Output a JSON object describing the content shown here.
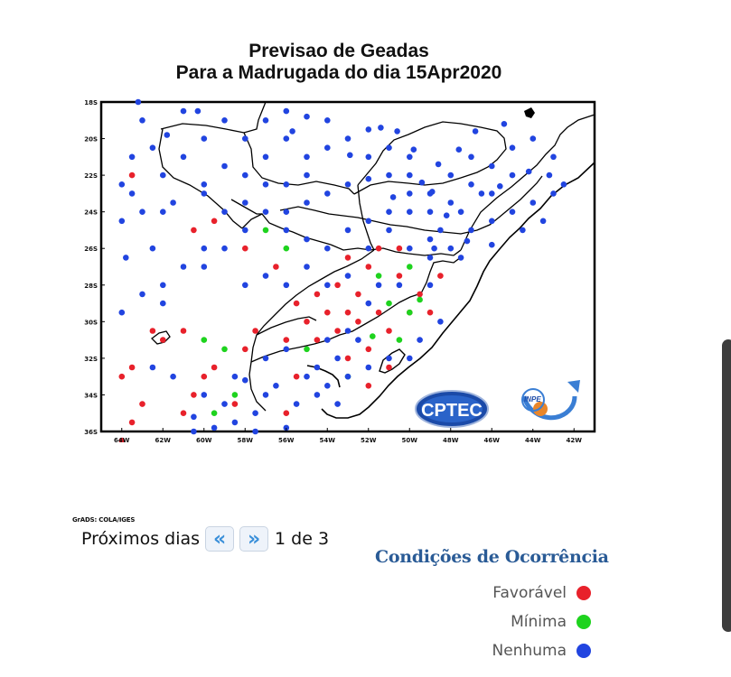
{
  "title": {
    "line1": "Previsao  de  Geadas",
    "line2": "Para a Madrugada do dia 15Apr2020"
  },
  "map": {
    "lat_labels": [
      "18S",
      "20S",
      "22S",
      "24S",
      "26S",
      "28S",
      "30S",
      "32S",
      "34S",
      "36S"
    ],
    "lon_labels": [
      "64W",
      "62W",
      "60W",
      "58W",
      "56W",
      "54W",
      "52W",
      "50W",
      "48W",
      "46W",
      "44W",
      "42W"
    ],
    "credit": "GrADS: COLA/IGES",
    "logos": {
      "cptec": "CPTEC",
      "inpe": "INPE"
    }
  },
  "navigation": {
    "label": "Próximos dias",
    "prev_icon": "double-chevron-left-icon",
    "next_icon": "double-chevron-right-icon",
    "page_text": "1 de 3"
  },
  "legend": {
    "title": "Condições de Ocorrência",
    "items": [
      {
        "label": "Favorável",
        "color": "#e8212b"
      },
      {
        "label": "Mínima",
        "color": "#1ed31e"
      },
      {
        "label": "Nenhuma",
        "color": "#2144e0"
      }
    ]
  },
  "colors": {
    "favoravel": "#e8212b",
    "minima": "#1ed31e",
    "nenhuma": "#2144e0"
  },
  "stations": {
    "favoravel": [
      [
        63.5,
        22
      ],
      [
        62,
        31
      ],
      [
        60.5,
        25
      ],
      [
        59.5,
        24.5
      ],
      [
        58,
        26
      ],
      [
        56.5,
        27
      ],
      [
        54.5,
        28.5
      ],
      [
        53,
        26.5
      ],
      [
        52,
        27
      ],
      [
        51.5,
        26
      ],
      [
        50.5,
        27.5
      ],
      [
        53.5,
        28
      ],
      [
        52.5,
        28.5
      ],
      [
        54,
        29.5
      ],
      [
        55.5,
        29
      ],
      [
        55,
        30
      ],
      [
        54.5,
        31
      ],
      [
        53.5,
        30.5
      ],
      [
        52.5,
        30
      ],
      [
        51.5,
        29.5
      ],
      [
        51,
        30.5
      ],
      [
        52,
        31.5
      ],
      [
        53,
        32
      ],
      [
        55.5,
        33
      ],
      [
        57.5,
        30.5
      ],
      [
        58,
        31.5
      ],
      [
        59.5,
        32.5
      ],
      [
        60,
        33
      ],
      [
        63.5,
        32.5
      ],
      [
        63,
        34.5
      ],
      [
        64,
        33
      ],
      [
        62.5,
        30.5
      ],
      [
        61,
        30.5
      ],
      [
        63.5,
        35.5
      ],
      [
        64,
        36.5
      ],
      [
        60.5,
        34
      ],
      [
        56,
        35
      ],
      [
        50.5,
        26
      ],
      [
        49.5,
        28.5
      ],
      [
        51,
        32.5
      ],
      [
        48.5,
        27.5
      ],
      [
        52,
        33.5
      ],
      [
        58.5,
        34.5
      ],
      [
        61,
        35
      ],
      [
        50,
        29.5
      ],
      [
        53,
        29.5
      ],
      [
        56,
        31
      ],
      [
        49,
        29.5
      ]
    ],
    "minima": [
      [
        57,
        25
      ],
      [
        56,
        26
      ],
      [
        51.5,
        27.5
      ],
      [
        50,
        27
      ],
      [
        51,
        29
      ],
      [
        50,
        29.5
      ],
      [
        59,
        31.5
      ],
      [
        58.5,
        34
      ],
      [
        59.5,
        35
      ],
      [
        50.5,
        31
      ],
      [
        53,
        33
      ],
      [
        55,
        31.5
      ],
      [
        60,
        31
      ],
      [
        49.5,
        28.8
      ],
      [
        51.8,
        30.8
      ]
    ],
    "nenhuma": [
      [
        63.2,
        18
      ],
      [
        63,
        19
      ],
      [
        63.5,
        21
      ],
      [
        63.5,
        23
      ],
      [
        62,
        24
      ],
      [
        61,
        18.5
      ],
      [
        60,
        20
      ],
      [
        57,
        19
      ],
      [
        56,
        20
      ],
      [
        55,
        21
      ],
      [
        54,
        19
      ],
      [
        53,
        20
      ],
      [
        52,
        21
      ],
      [
        51,
        22
      ],
      [
        50,
        23
      ],
      [
        49,
        24
      ],
      [
        48,
        22
      ],
      [
        47,
        21
      ],
      [
        46,
        23
      ],
      [
        45,
        22
      ],
      [
        44,
        23.5
      ],
      [
        43,
        23
      ],
      [
        48.5,
        25
      ],
      [
        47.5,
        24
      ],
      [
        46,
        24.5
      ],
      [
        50,
        21
      ],
      [
        51,
        20.5
      ],
      [
        52,
        19.5
      ],
      [
        53,
        22.5
      ],
      [
        54,
        23
      ],
      [
        55,
        23.5
      ],
      [
        56,
        24
      ],
      [
        57,
        22.5
      ],
      [
        58,
        23.5
      ],
      [
        59,
        24
      ],
      [
        60,
        26
      ],
      [
        61,
        27
      ],
      [
        62,
        28
      ],
      [
        63,
        28.5
      ],
      [
        62,
        29
      ],
      [
        60,
        27
      ],
      [
        58,
        28
      ],
      [
        57,
        27.5
      ],
      [
        56,
        28
      ],
      [
        55,
        27
      ],
      [
        54,
        26
      ],
      [
        53,
        25
      ],
      [
        52,
        24.5
      ],
      [
        51,
        25
      ],
      [
        50,
        24
      ],
      [
        49,
        25.5
      ],
      [
        48,
        26
      ],
      [
        47.5,
        26.5
      ],
      [
        49,
        26.5
      ],
      [
        50,
        26
      ],
      [
        55,
        22
      ],
      [
        56,
        22.5
      ],
      [
        58,
        22
      ],
      [
        59,
        21.5
      ],
      [
        60,
        22.5
      ],
      [
        61,
        21
      ],
      [
        62,
        22
      ],
      [
        63,
        24
      ],
      [
        64,
        24.5
      ],
      [
        63.8,
        26.5
      ],
      [
        62.5,
        26
      ],
      [
        64,
        29.5
      ],
      [
        62.5,
        32.5
      ],
      [
        61.5,
        33
      ],
      [
        60.5,
        35.2
      ],
      [
        60.5,
        36
      ],
      [
        59.5,
        35.8
      ],
      [
        58.5,
        35.5
      ],
      [
        57.5,
        36
      ],
      [
        56,
        35.8
      ],
      [
        57,
        34
      ],
      [
        58,
        33.2
      ],
      [
        57.5,
        35
      ],
      [
        54,
        33.5
      ],
      [
        53.5,
        34.5
      ],
      [
        54.5,
        34
      ],
      [
        55,
        33
      ],
      [
        53,
        33
      ],
      [
        52,
        32.5
      ],
      [
        51,
        32
      ],
      [
        52.5,
        31
      ],
      [
        50,
        32
      ],
      [
        49.5,
        31
      ],
      [
        48.5,
        30
      ],
      [
        49,
        28
      ],
      [
        50.5,
        28
      ],
      [
        52,
        29
      ],
      [
        53,
        30.5
      ],
      [
        54,
        31
      ],
      [
        56,
        31.5
      ],
      [
        57,
        32
      ],
      [
        58.5,
        33
      ],
      [
        59,
        34.5
      ],
      [
        60,
        34
      ],
      [
        55.5,
        34.5
      ],
      [
        56.5,
        33.5
      ],
      [
        53.5,
        32
      ],
      [
        54.5,
        32.5
      ],
      [
        51.5,
        28
      ],
      [
        48.8,
        26
      ],
      [
        47,
        25
      ],
      [
        46.5,
        23
      ],
      [
        45,
        24
      ],
      [
        44.5,
        25
      ],
      [
        43.5,
        24.5
      ],
      [
        42.5,
        22.5
      ],
      [
        43,
        21
      ],
      [
        44,
        20
      ],
      [
        45,
        20.5
      ],
      [
        46,
        21.5
      ],
      [
        47,
        22.5
      ],
      [
        48,
        23.5
      ],
      [
        49,
        23
      ],
      [
        50,
        22
      ],
      [
        51,
        24
      ],
      [
        52,
        26
      ],
      [
        53,
        27.5
      ],
      [
        54,
        28
      ],
      [
        55,
        25.5
      ],
      [
        56,
        25
      ],
      [
        57,
        24
      ],
      [
        58,
        25
      ],
      [
        59,
        26
      ],
      [
        60,
        23
      ],
      [
        61.5,
        23.5
      ],
      [
        62.5,
        20.5
      ],
      [
        64,
        22.5
      ],
      [
        59,
        19
      ],
      [
        58,
        20
      ],
      [
        57,
        21
      ],
      [
        56,
        18.5
      ],
      [
        55,
        18.8
      ],
      [
        54,
        20.5
      ],
      [
        52,
        22.2
      ],
      [
        50.8,
        23.2
      ],
      [
        48.2,
        24.2
      ],
      [
        47.2,
        25.6
      ],
      [
        46,
        25.8
      ],
      [
        45.6,
        22.6
      ],
      [
        44.2,
        21.8
      ],
      [
        43.2,
        22
      ],
      [
        48.6,
        21.4
      ],
      [
        49.8,
        20.6
      ],
      [
        50.6,
        19.6
      ],
      [
        51.4,
        19.4
      ],
      [
        47.6,
        20.6
      ],
      [
        46.8,
        19.6
      ],
      [
        45.4,
        19.2
      ],
      [
        49.4,
        22.4
      ],
      [
        48.9,
        22.9
      ],
      [
        52.9,
        20.9
      ],
      [
        55.7,
        19.6
      ],
      [
        60.3,
        18.5
      ],
      [
        61.8,
        19.8
      ]
    ]
  }
}
